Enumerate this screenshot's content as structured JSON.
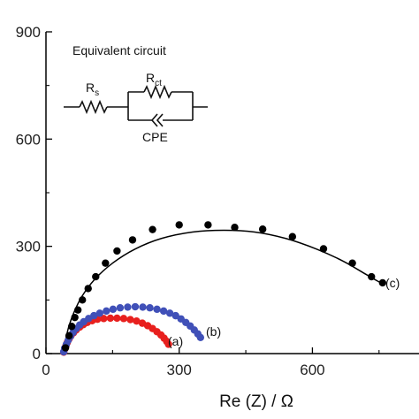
{
  "chart_data": {
    "type": "scatter",
    "xlabel": "Re (Z) / Ω",
    "ylabel": "",
    "xlim": [
      0,
      840
    ],
    "ylim": [
      0,
      900
    ],
    "xticks": [
      0,
      300,
      600
    ],
    "yticks": [
      0,
      300,
      600,
      900
    ],
    "colors": {
      "a": "#e8201e",
      "b": "#4050b8",
      "c": "#000000",
      "fit": "#000000",
      "axis": "#000000"
    },
    "inset": {
      "title": "Equivalent circuit",
      "rs_main": "R",
      "rs_sub": "s",
      "rct_main": "R",
      "rct_sub": "ct",
      "cpe": "CPE"
    },
    "series": [
      {
        "name": "(a)",
        "color": "#e8201e",
        "points": [
          [
            40,
            4
          ],
          [
            42,
            12
          ],
          [
            45,
            22
          ],
          [
            48,
            31
          ],
          [
            52,
            41
          ],
          [
            56,
            49
          ],
          [
            62,
            58
          ],
          [
            68,
            66
          ],
          [
            76,
            74
          ],
          [
            84,
            81
          ],
          [
            93,
            87
          ],
          [
            104,
            92
          ],
          [
            116,
            96
          ],
          [
            130,
            98
          ],
          [
            145,
            99
          ],
          [
            160,
            99
          ],
          [
            175,
            98
          ],
          [
            190,
            95
          ],
          [
            204,
            91
          ],
          [
            217,
            85
          ],
          [
            229,
            78
          ],
          [
            240,
            70
          ],
          [
            250,
            61
          ],
          [
            259,
            52
          ],
          [
            266,
            43
          ],
          [
            272,
            34
          ],
          [
            276,
            26
          ]
        ]
      },
      {
        "name": "(b)",
        "color": "#4050b8",
        "points": [
          [
            40,
            5
          ],
          [
            42,
            15
          ],
          [
            46,
            26
          ],
          [
            50,
            37
          ],
          [
            55,
            48
          ],
          [
            61,
            59
          ],
          [
            68,
            70
          ],
          [
            76,
            80
          ],
          [
            85,
            89
          ],
          [
            96,
            98
          ],
          [
            108,
            106
          ],
          [
            121,
            113
          ],
          [
            136,
            119
          ],
          [
            151,
            124
          ],
          [
            167,
            128
          ],
          [
            184,
            130
          ],
          [
            201,
            131
          ],
          [
            218,
            130
          ],
          [
            234,
            128
          ],
          [
            250,
            124
          ],
          [
            265,
            119
          ],
          [
            279,
            113
          ],
          [
            292,
            106
          ],
          [
            304,
            97
          ],
          [
            315,
            87
          ],
          [
            325,
            77
          ],
          [
            334,
            66
          ],
          [
            342,
            55
          ],
          [
            348,
            45
          ]
        ]
      },
      {
        "name": "(c)",
        "color": "#000000",
        "points": [
          [
            44,
            16
          ],
          [
            52,
            50
          ],
          [
            58,
            76
          ],
          [
            65,
            101
          ],
          [
            72,
            122
          ],
          [
            82,
            150
          ],
          [
            95,
            182
          ],
          [
            112,
            215
          ],
          [
            134,
            253
          ],
          [
            160,
            287
          ],
          [
            195,
            318
          ],
          [
            240,
            347
          ],
          [
            300,
            360
          ],
          [
            365,
            360
          ],
          [
            425,
            353
          ],
          [
            488,
            348
          ],
          [
            555,
            327
          ],
          [
            625,
            293
          ],
          [
            690,
            253
          ],
          [
            733,
            215
          ],
          [
            758,
            198
          ]
        ]
      }
    ],
    "fit": {
      "x": [
        40,
        42,
        46,
        52,
        62,
        80,
        110,
        150,
        200,
        260,
        330,
        400,
        470,
        540,
        610,
        670,
        720,
        745,
        758
      ],
      "y": [
        0,
        22,
        48,
        78,
        112,
        158,
        208,
        253,
        292,
        322,
        340,
        345,
        340,
        322,
        292,
        258,
        222,
        204,
        196
      ]
    }
  }
}
